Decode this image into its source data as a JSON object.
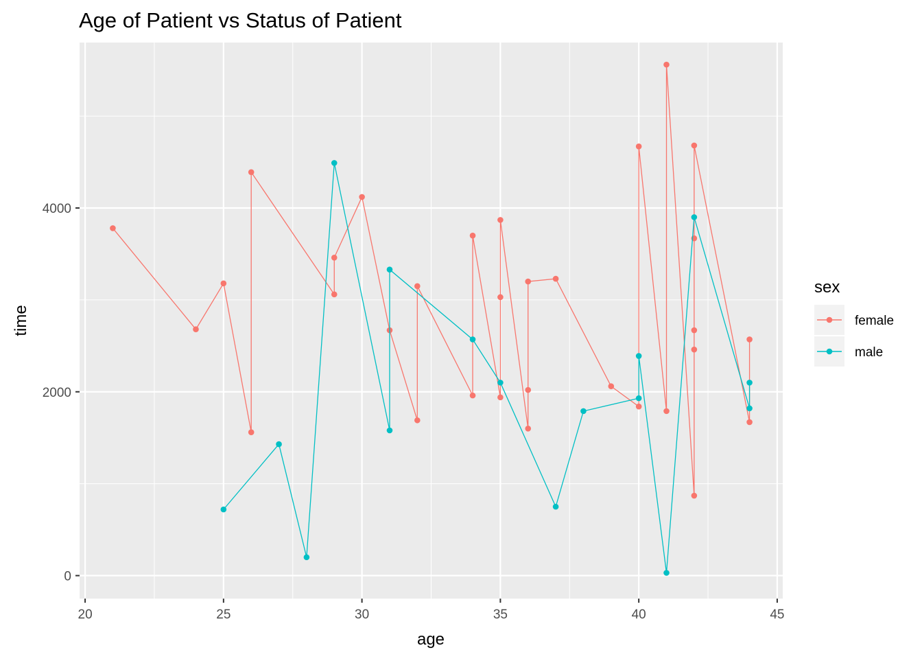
{
  "chart_data": {
    "type": "line",
    "title": "Age of Patient vs Status of Patient",
    "xlabel": "age",
    "ylabel": "time",
    "xlim": [
      19.8,
      45.2
    ],
    "ylim": [
      -250,
      5800
    ],
    "x_ticks": [
      20,
      25,
      30,
      35,
      40,
      45
    ],
    "y_ticks": [
      0,
      2000,
      4000
    ],
    "grid": true,
    "legend": {
      "title": "sex",
      "position": "right"
    },
    "series": [
      {
        "name": "female",
        "color": "#F8766D",
        "points": [
          [
            21,
            3780
          ],
          [
            24,
            2680
          ],
          [
            25,
            3180
          ],
          [
            26,
            1560
          ],
          [
            26,
            4390
          ],
          [
            29,
            3060
          ],
          [
            29,
            3460
          ],
          [
            30,
            4120
          ],
          [
            31,
            2670
          ],
          [
            32,
            1690
          ],
          [
            32,
            3150
          ],
          [
            34,
            1960
          ],
          [
            34,
            3700
          ],
          [
            35,
            1940
          ],
          [
            35,
            3030
          ],
          [
            35,
            3870
          ],
          [
            36,
            1600
          ],
          [
            36,
            2020
          ],
          [
            36,
            3200
          ],
          [
            37,
            3230
          ],
          [
            39,
            2060
          ],
          [
            40,
            1840
          ],
          [
            40,
            4670
          ],
          [
            41,
            1790
          ],
          [
            41,
            5560
          ],
          [
            42,
            870
          ],
          [
            42,
            2460
          ],
          [
            42,
            2670
          ],
          [
            42,
            3670
          ],
          [
            42,
            4680
          ],
          [
            44,
            1670
          ],
          [
            44,
            2570
          ]
        ]
      },
      {
        "name": "male",
        "color": "#00BFC4",
        "points": [
          [
            25,
            720
          ],
          [
            27,
            1430
          ],
          [
            28,
            200
          ],
          [
            29,
            4490
          ],
          [
            31,
            1580
          ],
          [
            31,
            3330
          ],
          [
            34,
            2570
          ],
          [
            35,
            2100
          ],
          [
            37,
            750
          ],
          [
            38,
            1790
          ],
          [
            40,
            1930
          ],
          [
            40,
            2390
          ],
          [
            41,
            30
          ],
          [
            42,
            3900
          ],
          [
            44,
            1820
          ],
          [
            44,
            2100
          ]
        ]
      }
    ]
  }
}
